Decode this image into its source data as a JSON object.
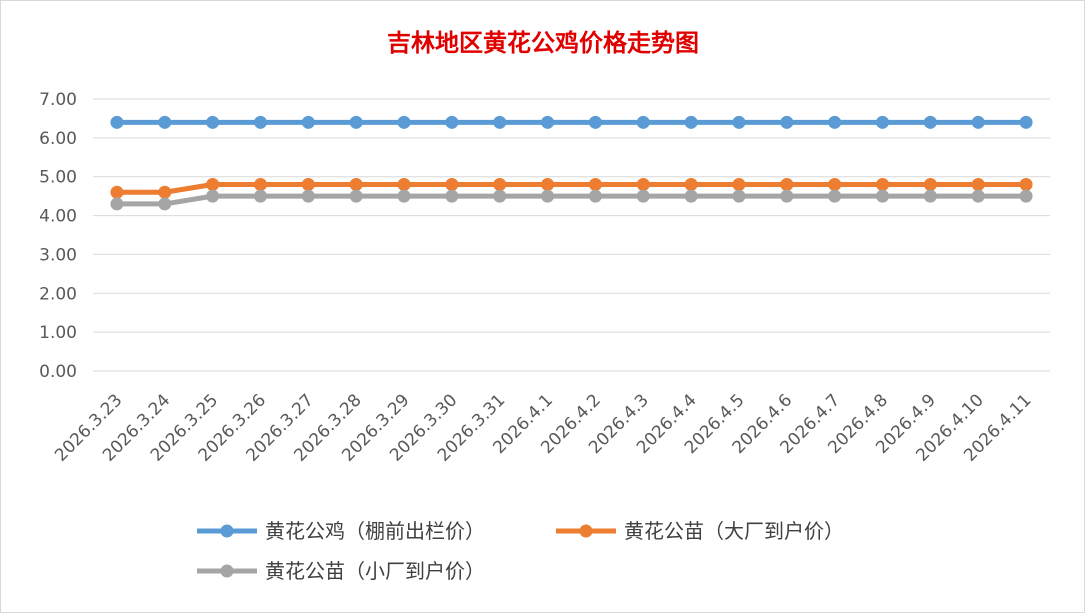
{
  "chart_data": {
    "type": "line",
    "title": "吉林地区黄花公鸡价格走势图",
    "title_color": "#e00000",
    "xlabel": "",
    "ylabel": "",
    "ylim": [
      0,
      7
    ],
    "yticks": [
      "0.00",
      "1.00",
      "2.00",
      "3.00",
      "4.00",
      "5.00",
      "6.00",
      "7.00"
    ],
    "grid": true,
    "legend_position": "bottom",
    "categories": [
      "2026.3.23",
      "2026.3.24",
      "2026.3.25",
      "2026.3.26",
      "2026.3.27",
      "2026.3.28",
      "2026.3.29",
      "2026.3.30",
      "2026.3.31",
      "2026.4.1",
      "2026.4.2",
      "2026.4.3",
      "2026.4.4",
      "2026.4.5",
      "2026.4.6",
      "2026.4.7",
      "2026.4.8",
      "2026.4.9",
      "2026.4.10",
      "2026.4.11"
    ],
    "series": [
      {
        "name": "黄花公鸡（棚前出栏价）",
        "color": "#5b9bd5",
        "values": [
          6.4,
          6.4,
          6.4,
          6.4,
          6.4,
          6.4,
          6.4,
          6.4,
          6.4,
          6.4,
          6.4,
          6.4,
          6.4,
          6.4,
          6.4,
          6.4,
          6.4,
          6.4,
          6.4,
          6.4
        ]
      },
      {
        "name": "黄花公苗（大厂到户价）",
        "color": "#ed7d31",
        "values": [
          4.6,
          4.6,
          4.8,
          4.8,
          4.8,
          4.8,
          4.8,
          4.8,
          4.8,
          4.8,
          4.8,
          4.8,
          4.8,
          4.8,
          4.8,
          4.8,
          4.8,
          4.8,
          4.8,
          4.8
        ]
      },
      {
        "name": "黄花公苗（小厂到户价）",
        "color": "#a5a5a5",
        "values": [
          4.3,
          4.3,
          4.5,
          4.5,
          4.5,
          4.5,
          4.5,
          4.5,
          4.5,
          4.5,
          4.5,
          4.5,
          4.5,
          4.5,
          4.5,
          4.5,
          4.5,
          4.5,
          4.5,
          4.5
        ]
      }
    ]
  }
}
